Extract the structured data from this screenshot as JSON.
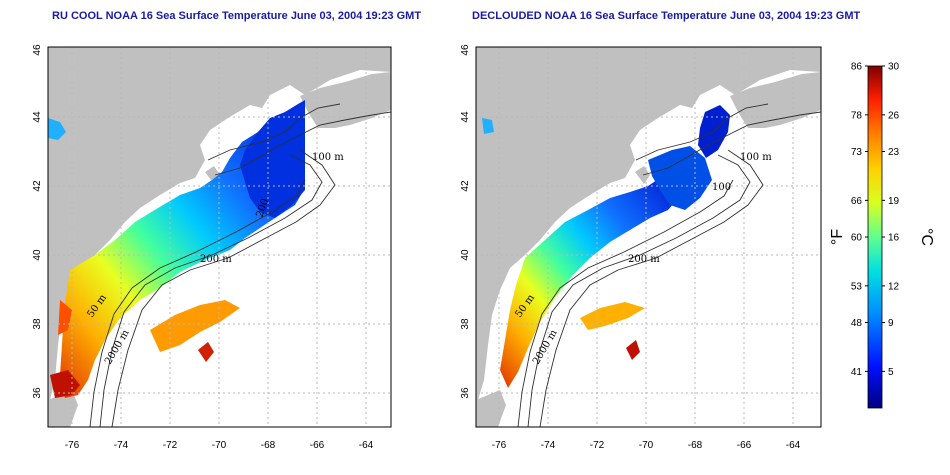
{
  "panels": [
    {
      "title": "RU COOL NOAA 16 Sea Surface Temperature June 03, 2004 19:23 GMT"
    },
    {
      "title": "DECLOUDED NOAA 16 Sea Surface Temperature June 03, 2004 19:23 GMT"
    }
  ],
  "axes": {
    "lon_ticks": [
      "-76",
      "-74",
      "-72",
      "-70",
      "-68",
      "-66",
      "-64"
    ],
    "lat_ticks": [
      "36",
      "38",
      "40",
      "42",
      "44",
      "46"
    ]
  },
  "contour_labels": {
    "left": [
      "100 m",
      "200 m",
      "50 m",
      "2000 m",
      "200"
    ],
    "right": [
      "100 m",
      "200 m",
      "50 m",
      "2000 m",
      "100"
    ]
  },
  "colorbar": {
    "fahrenheit_ticks": [
      "86",
      "78",
      "73",
      "66",
      "60",
      "53",
      "48",
      "41"
    ],
    "celsius_ticks": [
      "30",
      "26",
      "23",
      "19",
      "16",
      "12",
      "9",
      "5"
    ],
    "fahrenheit_unit": "°F",
    "celsius_unit": "°C",
    "range_c": [
      2,
      30
    ],
    "colors": [
      "#000080",
      "#0000ff",
      "#00a0ff",
      "#00ffff",
      "#80ff80",
      "#ffff00",
      "#ff8000",
      "#ff0000",
      "#800000"
    ]
  },
  "colors": {
    "land": "#c0c0c0",
    "title": "#1a1aa6",
    "grid": "#b0b0b0"
  }
}
